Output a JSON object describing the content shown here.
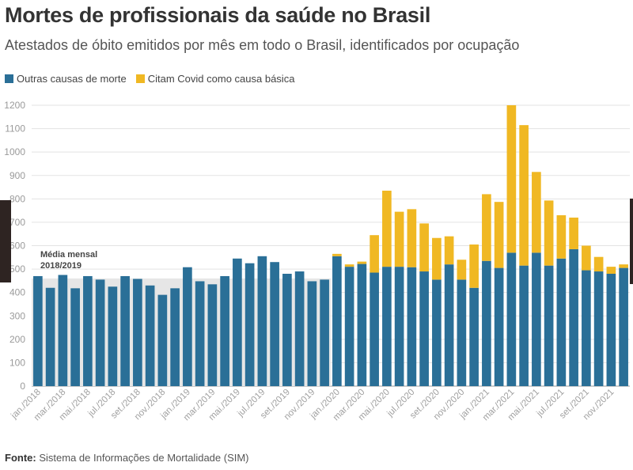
{
  "header": {
    "title": "Mortes de profissionais da saúde no Brasil",
    "subtitle": "Atestados de óbito emitidos por mês em todo o Brasil, identificados por ocupação"
  },
  "legend": {
    "items": [
      {
        "label": "Outras causas de morte",
        "color": "#2a6f97"
      },
      {
        "label": "Citam Covid como causa básica",
        "color": "#f0b823"
      }
    ]
  },
  "annotation": {
    "line1": "Média mensal",
    "line2": "2018/2019",
    "value": 460
  },
  "footer": {
    "source_label": "Fonte:",
    "source_text": "Sistema de Informações de Mortalidade (SIM)"
  },
  "chart_data": {
    "type": "bar",
    "stacked": true,
    "ylim": [
      0,
      1200
    ],
    "yticks": [
      0,
      100,
      200,
      300,
      400,
      500,
      600,
      700,
      800,
      900,
      1000,
      1100,
      1200
    ],
    "grid": true,
    "legend_position": "top-left",
    "x_tick_labels": [
      "jan./2018",
      "mar./2018",
      "mai./2018",
      "jul./2018",
      "set./2018",
      "nov./2018",
      "jan./2019",
      "mar./2019",
      "mai./2019",
      "jul./2019",
      "set./2019",
      "nov./2019",
      "jan./2020",
      "mar./2020",
      "mai./2020",
      "jul./2020",
      "set./2020",
      "nov./2020",
      "jan./2021",
      "mar./2021",
      "mai./2021",
      "jul./2021",
      "set./2021",
      "nov./2021"
    ],
    "x_tick_every": 2,
    "series": [
      {
        "name": "Outras causas de morte",
        "color": "#2a6f97",
        "values": [
          470,
          420,
          475,
          418,
          470,
          455,
          425,
          470,
          458,
          430,
          390,
          418,
          508,
          448,
          435,
          470,
          545,
          525,
          555,
          530,
          480,
          490,
          448,
          455,
          555,
          510,
          522,
          485,
          510,
          510,
          508,
          490,
          455,
          520,
          455,
          420,
          535,
          505,
          570,
          515,
          570,
          515,
          545,
          585,
          495,
          490,
          480,
          505
        ]
      },
      {
        "name": "Citam Covid como causa básica",
        "color": "#f0b823",
        "values": [
          0,
          0,
          0,
          0,
          0,
          0,
          0,
          0,
          0,
          0,
          0,
          0,
          0,
          0,
          0,
          0,
          0,
          0,
          0,
          0,
          0,
          0,
          0,
          0,
          10,
          10,
          10,
          160,
          325,
          235,
          248,
          205,
          178,
          120,
          85,
          185,
          285,
          282,
          630,
          600,
          345,
          278,
          185,
          135,
          105,
          62,
          30,
          15
        ]
      }
    ]
  }
}
